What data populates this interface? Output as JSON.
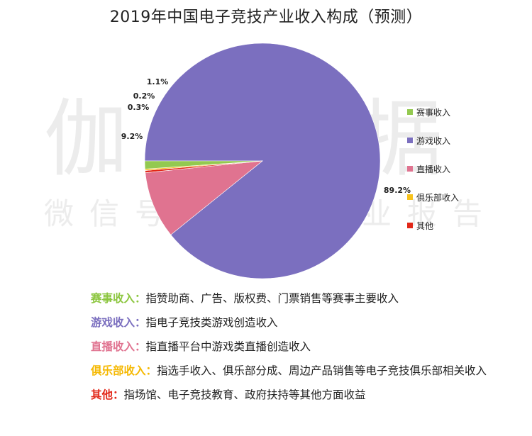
{
  "title": "2019年中国电子竞技产业收入构成（预测）",
  "watermark": {
    "line1": "伽马数据",
    "line2": "微信号：游戏产业报告"
  },
  "chart_data": {
    "type": "pie",
    "title": "2019年中国电子竞技产业收入构成（预测）",
    "start_angle_deg": 180,
    "direction": "clockwise",
    "slices": [
      {
        "name": "游戏收入",
        "value": 89.2,
        "label": "89.2%",
        "color": "#7b6fbf"
      },
      {
        "name": "直播收入",
        "value": 9.2,
        "label": "9.2%",
        "color": "#e07390"
      },
      {
        "name": "其他",
        "value": 0.3,
        "label": "0.3%",
        "color": "#e22718"
      },
      {
        "name": "俱乐部收入",
        "value": 0.2,
        "label": "0.2%",
        "color": "#f7c21c"
      },
      {
        "name": "赛事收入",
        "value": 1.1,
        "label": "1.1%",
        "color": "#93c950"
      }
    ],
    "legend": {
      "position": "right",
      "items": [
        {
          "name": "赛事收入",
          "color": "#93c950"
        },
        {
          "name": "游戏收入",
          "color": "#7b6fbf"
        },
        {
          "name": "直播收入",
          "color": "#e07390"
        },
        {
          "name": "俱乐部收入",
          "color": "#f7c21c"
        },
        {
          "name": "其他",
          "color": "#e22718"
        }
      ]
    }
  },
  "notes": [
    {
      "key": "赛事收入：",
      "text": "指赞助商、广告、版权费、门票销售等赛事主要收入",
      "color": "#8cc63f"
    },
    {
      "key": "游戏收入：",
      "text": "指电子竞技类游戏创造收入",
      "color": "#7b6fbf"
    },
    {
      "key": "直播收入：",
      "text": "指直播平台中游戏类直播创造收入",
      "color": "#e07390"
    },
    {
      "key": "俱乐部收入：",
      "text": "指选手收入、俱乐部分成、周边产品销售等电子竞技俱乐部相关收入",
      "color": "#f5b800"
    },
    {
      "key": "其他：",
      "text": "指场馆、电子竞技教育、政府扶持等其他方面收益",
      "color": "#e22718"
    }
  ]
}
